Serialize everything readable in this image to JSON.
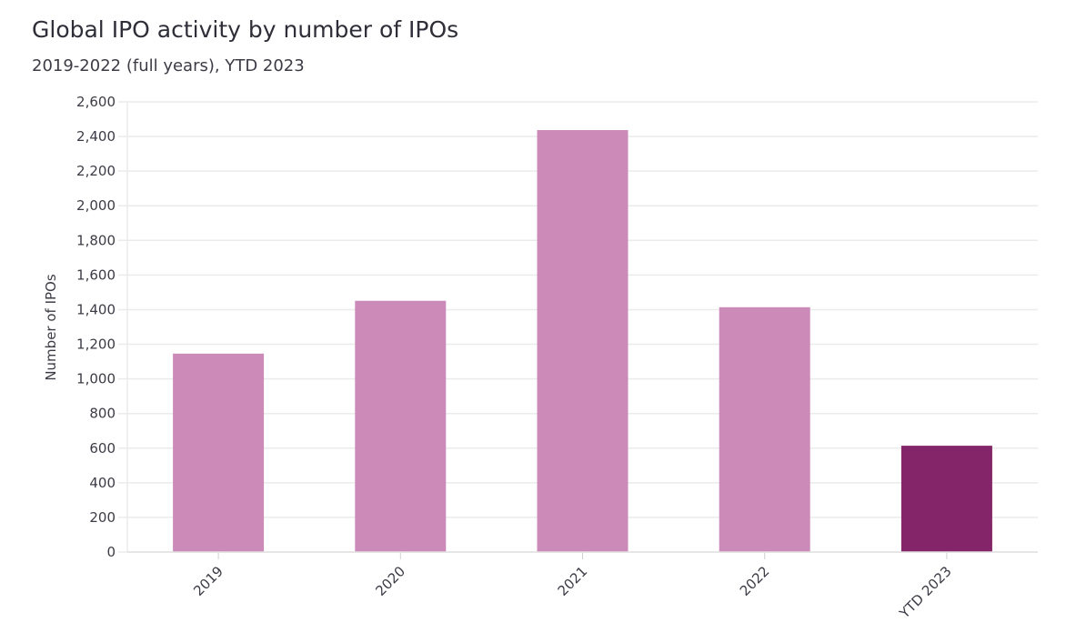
{
  "chart_data": {
    "type": "bar",
    "title": "Global IPO activity by number of IPOs",
    "subtitle": "2019-2022 (full years), YTD 2023",
    "xlabel": "",
    "ylabel": "Number of IPOs",
    "categories": [
      "2019",
      "2020",
      "2021",
      "2022",
      "YTD 2023"
    ],
    "values": [
      1146,
      1451,
      2437,
      1414,
      614
    ],
    "colors": [
      "#cc8ab8",
      "#cc8ab8",
      "#cc8ab8",
      "#cc8ab8",
      "#842469"
    ],
    "ylim": [
      0,
      2600
    ],
    "yticks": [
      0,
      200,
      400,
      600,
      800,
      1000,
      1200,
      1400,
      1600,
      1800,
      2000,
      2200,
      2400,
      2600
    ],
    "ytick_labels": [
      "0",
      "200",
      "400",
      "600",
      "800",
      "1,000",
      "1,200",
      "1,400",
      "1,600",
      "1,800",
      "2,000",
      "2,200",
      "2,400",
      "2,600"
    ],
    "grid": true,
    "legend": "none"
  }
}
